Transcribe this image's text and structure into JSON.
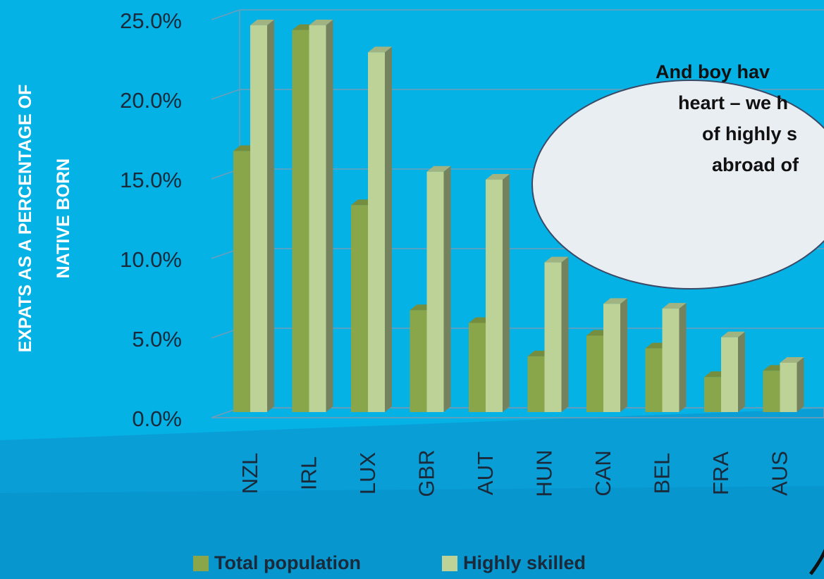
{
  "chart_data": {
    "type": "bar",
    "y_label": [
      "EXPATS AS A PERCENTAGE OF",
      "NATIVE BORN"
    ],
    "categories": [
      "NZL",
      "IRL",
      "LUX",
      "GBR",
      "AUT",
      "HUN",
      "CAN",
      "BEL",
      "FRA",
      "AUS"
    ],
    "series": [
      {
        "name": "Total population",
        "color": "#8aa64a",
        "values": [
          16.4,
          24.0,
          13.0,
          6.4,
          5.6,
          3.5,
          4.8,
          4.0,
          2.2,
          2.6
        ]
      },
      {
        "name": "Highly skilled",
        "color": "#bdd297",
        "values": [
          24.3,
          24.3,
          22.6,
          15.1,
          14.6,
          9.4,
          6.8,
          6.5,
          4.7,
          3.1
        ]
      }
    ],
    "ylim": [
      0,
      25
    ],
    "yticks": [
      {
        "value": 0,
        "label": "0.0%"
      },
      {
        "value": 5,
        "label": "5.0%"
      },
      {
        "value": 10,
        "label": "10.0%"
      },
      {
        "value": 15,
        "label": "15.0%"
      },
      {
        "value": 20,
        "label": "20.0%"
      },
      {
        "value": 25,
        "label": "25.0%"
      }
    ],
    "grid": true,
    "legend": "bottom",
    "annotation": [
      "And boy hav",
      "heart – we h",
      "of highly s",
      "abroad of"
    ]
  }
}
